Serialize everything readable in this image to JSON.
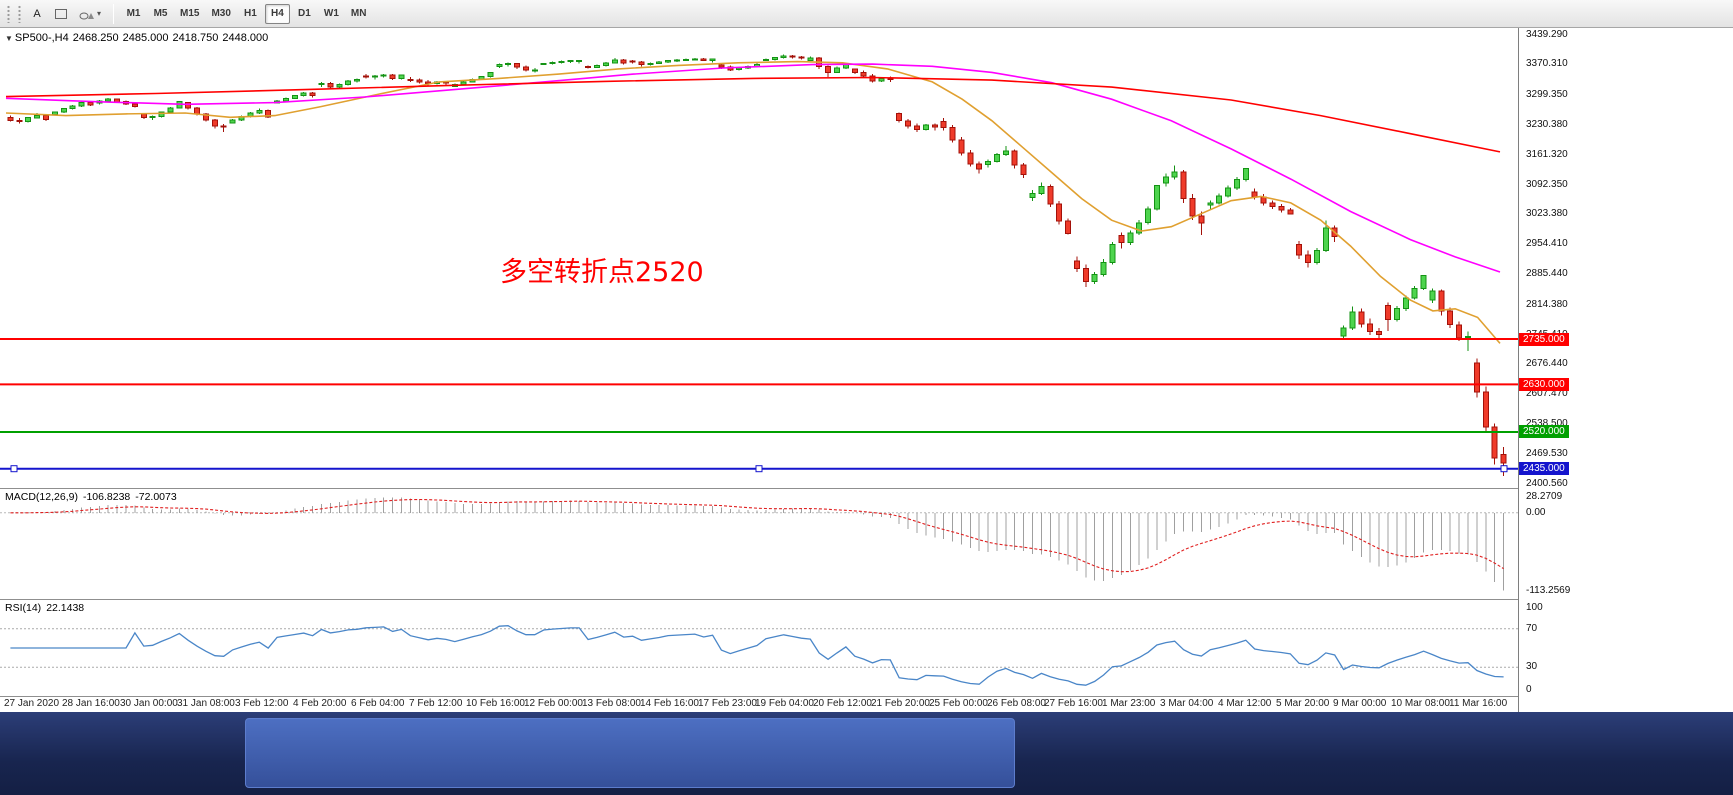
{
  "toolbar": {
    "text_tool": "A",
    "timeframes": [
      "M1",
      "M5",
      "M15",
      "M30",
      "H1",
      "H4",
      "D1",
      "W1",
      "MN"
    ],
    "active_timeframe": "H4"
  },
  "quote": {
    "symbol": "SP500-,H4",
    "open": "2468.250",
    "high": "2485.000",
    "low": "2418.750",
    "close": "2448.000"
  },
  "annotation": {
    "text": "多空转折点2520",
    "color": "#ff0000"
  },
  "price_axis_labels": [
    "3439.290",
    "3370.310",
    "3299.350",
    "3230.380",
    "3161.320",
    "3092.350",
    "3023.380",
    "2954.410",
    "2885.440",
    "2814.380",
    "2745.410",
    "2676.440",
    "2607.470",
    "2538.500",
    "2469.530",
    "2400.560"
  ],
  "time_axis_labels": [
    "27 Jan 2020",
    "28 Jan 16:00",
    "30 Jan 00:00",
    "31 Jan 08:00",
    "3 Feb 12:00",
    "4 Feb 20:00",
    "6 Feb 04:00",
    "7 Feb 12:00",
    "10 Feb 16:00",
    "12 Feb 00:00",
    "13 Feb 08:00",
    "14 Feb 16:00",
    "17 Feb 23:00",
    "19 Feb 04:00",
    "20 Feb 12:00",
    "21 Feb 20:00",
    "25 Feb 00:00",
    "26 Feb 08:00",
    "27 Feb 16:00",
    "1 Mar 23:00",
    "3 Mar 04:00",
    "4 Mar 12:00",
    "5 Mar 20:00",
    "9 Mar 00:00",
    "10 Mar 08:00",
    "11 Mar 16:00"
  ],
  "indicators": {
    "macd": {
      "name": "MACD(12,26,9)",
      "value_main": "-106.8238",
      "value_signal": "-72.0073",
      "axis_top": "28.2709",
      "axis_zero": "0.00",
      "axis_bottom": "-113.2569",
      "histogram_color": "#a0a0a0",
      "signal_color": "#e02020"
    },
    "rsi": {
      "name": "RSI(14)",
      "value": "22.1438",
      "axis_labels": [
        "100",
        "70",
        "30",
        "0"
      ],
      "levels": [
        70,
        30
      ],
      "line_color": "#4a86c8"
    }
  },
  "chart_data": {
    "type": "candlestick",
    "symbol": "SP500-",
    "timeframe": "H4",
    "price_range": [
      2395,
      3450
    ],
    "colors": {
      "up": "#4ed44e",
      "up_border": "#149314",
      "down": "#ef3b2a",
      "down_border": "#a31109"
    },
    "hlines": [
      {
        "price": 2735,
        "label": "2735.000",
        "color": "#ff0000",
        "width": 2
      },
      {
        "price": 2630,
        "label": "2630.000",
        "color": "#ff0000",
        "width": 2
      },
      {
        "price": 2520,
        "label": "2520.000",
        "color": "#00a000",
        "width": 2
      },
      {
        "price": 2435,
        "label": "2435.000",
        "color": "#1414cd",
        "width": 2,
        "selected": true
      }
    ],
    "moving_averages": [
      {
        "name": "MA-fast",
        "color": "#e0a030",
        "points": [
          [
            0,
            3258
          ],
          [
            0.04,
            3252
          ],
          [
            0.08,
            3256
          ],
          [
            0.12,
            3258
          ],
          [
            0.15,
            3248
          ],
          [
            0.18,
            3252
          ],
          [
            0.21,
            3272
          ],
          [
            0.25,
            3302
          ],
          [
            0.29,
            3330
          ],
          [
            0.33,
            3338
          ],
          [
            0.37,
            3348
          ],
          [
            0.41,
            3360
          ],
          [
            0.45,
            3368
          ],
          [
            0.49,
            3374
          ],
          [
            0.53,
            3377
          ],
          [
            0.56,
            3374
          ],
          [
            0.59,
            3360
          ],
          [
            0.62,
            3330
          ],
          [
            0.64,
            3290
          ],
          [
            0.66,
            3240
          ],
          [
            0.68,
            3180
          ],
          [
            0.7,
            3120
          ],
          [
            0.72,
            3060
          ],
          [
            0.74,
            3010
          ],
          [
            0.76,
            2985
          ],
          [
            0.78,
            2995
          ],
          [
            0.8,
            3025
          ],
          [
            0.82,
            3055
          ],
          [
            0.84,
            3065
          ],
          [
            0.86,
            3050
          ],
          [
            0.88,
            3010
          ],
          [
            0.9,
            2950
          ],
          [
            0.92,
            2880
          ],
          [
            0.94,
            2825
          ],
          [
            0.955,
            2800
          ],
          [
            0.97,
            2805
          ],
          [
            0.985,
            2785
          ],
          [
            1,
            2725
          ]
        ]
      },
      {
        "name": "MA-medium",
        "color": "#ff00ff",
        "points": [
          [
            0,
            3292
          ],
          [
            0.06,
            3284
          ],
          [
            0.12,
            3278
          ],
          [
            0.18,
            3282
          ],
          [
            0.24,
            3295
          ],
          [
            0.3,
            3312
          ],
          [
            0.36,
            3330
          ],
          [
            0.42,
            3348
          ],
          [
            0.48,
            3362
          ],
          [
            0.54,
            3370
          ],
          [
            0.58,
            3371
          ],
          [
            0.62,
            3366
          ],
          [
            0.66,
            3352
          ],
          [
            0.7,
            3328
          ],
          [
            0.74,
            3290
          ],
          [
            0.78,
            3240
          ],
          [
            0.82,
            3175
          ],
          [
            0.86,
            3105
          ],
          [
            0.9,
            3030
          ],
          [
            0.94,
            2965
          ],
          [
            0.97,
            2925
          ],
          [
            1,
            2890
          ]
        ]
      },
      {
        "name": "MA-slow",
        "color": "#ff0000",
        "points": [
          [
            0,
            3296
          ],
          [
            0.1,
            3303
          ],
          [
            0.2,
            3312
          ],
          [
            0.3,
            3322
          ],
          [
            0.4,
            3331
          ],
          [
            0.5,
            3338
          ],
          [
            0.58,
            3340
          ],
          [
            0.66,
            3334
          ],
          [
            0.74,
            3318
          ],
          [
            0.82,
            3288
          ],
          [
            0.88,
            3252
          ],
          [
            0.94,
            3210
          ],
          [
            1,
            3168
          ]
        ]
      }
    ],
    "ohlc": [
      [
        3247,
        3252,
        3238,
        3241
      ],
      [
        3241,
        3246,
        3234,
        3238
      ],
      [
        3238,
        3249,
        3236,
        3247
      ],
      [
        3247,
        3258,
        3245,
        3252
      ],
      [
        3252,
        3255,
        3240,
        3243
      ],
      [
        3255,
        3262,
        3253,
        3260
      ],
      [
        3260,
        3270,
        3258,
        3268
      ],
      [
        3268,
        3277,
        3266,
        3274
      ],
      [
        3274,
        3285,
        3272,
        3282
      ],
      [
        3282,
        3284,
        3274,
        3276
      ],
      [
        3281,
        3288,
        3278,
        3286
      ],
      [
        3286,
        3293,
        3284,
        3290
      ],
      [
        3290,
        3292,
        3282,
        3284
      ],
      [
        3284,
        3287,
        3276,
        3279
      ],
      [
        3279,
        3281,
        3271,
        3273
      ],
      [
        3256,
        3258,
        3244,
        3248
      ],
      [
        3248,
        3252,
        3242,
        3250
      ],
      [
        3250,
        3262,
        3248,
        3260
      ],
      [
        3260,
        3272,
        3258,
        3270
      ],
      [
        3270,
        3285,
        3268,
        3284
      ],
      [
        3282,
        3282,
        3266,
        3270
      ],
      [
        3270,
        3272,
        3252,
        3256
      ],
      [
        3256,
        3258,
        3238,
        3242
      ],
      [
        3242,
        3244,
        3222,
        3228
      ],
      [
        3228,
        3232,
        3214,
        3226
      ],
      [
        3235,
        3244,
        3235,
        3242
      ],
      [
        3242,
        3252,
        3240,
        3250
      ],
      [
        3250,
        3260,
        3248,
        3258
      ],
      [
        3258,
        3268,
        3256,
        3264
      ],
      [
        3264,
        3266,
        3246,
        3249
      ],
      [
        3281,
        3288,
        3280,
        3286
      ],
      [
        3286,
        3294,
        3284,
        3292
      ],
      [
        3292,
        3300,
        3290,
        3298
      ],
      [
        3298,
        3307,
        3296,
        3304
      ],
      [
        3304,
        3306,
        3294,
        3298
      ],
      [
        3324,
        3330,
        3318,
        3326
      ],
      [
        3326,
        3330,
        3313,
        3318
      ],
      [
        3318,
        3326,
        3316,
        3324
      ],
      [
        3324,
        3334,
        3322,
        3332
      ],
      [
        3332,
        3338,
        3328,
        3335
      ],
      [
        3344,
        3348,
        3338,
        3342
      ],
      [
        3342,
        3346,
        3336,
        3344
      ],
      [
        3344,
        3348,
        3340,
        3346
      ],
      [
        3346,
        3348,
        3334,
        3338
      ],
      [
        3338,
        3346,
        3336,
        3346
      ],
      [
        3335,
        3341,
        3330,
        3334
      ],
      [
        3334,
        3338,
        3326,
        3330
      ],
      [
        3330,
        3334,
        3322,
        3326
      ],
      [
        3326,
        3332,
        3324,
        3330
      ],
      [
        3330,
        3332,
        3322,
        3328
      ],
      [
        3319,
        3326,
        3318,
        3324
      ],
      [
        3324,
        3332,
        3322,
        3330
      ],
      [
        3330,
        3338,
        3328,
        3336
      ],
      [
        3336,
        3344,
        3334,
        3342
      ],
      [
        3342,
        3352,
        3340,
        3352
      ],
      [
        3366,
        3372,
        3362,
        3370
      ],
      [
        3370,
        3375,
        3366,
        3372
      ],
      [
        3372,
        3374,
        3360,
        3364
      ],
      [
        3364,
        3368,
        3354,
        3358
      ],
      [
        3358,
        3362,
        3352,
        3358
      ],
      [
        3370,
        3374,
        3369,
        3372
      ],
      [
        3372,
        3377,
        3370,
        3375
      ],
      [
        3375,
        3379,
        3372,
        3377
      ],
      [
        3377,
        3381,
        3374,
        3379
      ],
      [
        3379,
        3381,
        3373,
        3379
      ],
      [
        3365,
        3368,
        3361,
        3363
      ],
      [
        3363,
        3370,
        3362,
        3368
      ],
      [
        3368,
        3376,
        3366,
        3374
      ],
      [
        3374,
        3385,
        3372,
        3381
      ],
      [
        3381,
        3383,
        3370,
        3374
      ],
      [
        3378,
        3381,
        3372,
        3376
      ],
      [
        3376,
        3378,
        3366,
        3370
      ],
      [
        3370,
        3375,
        3368,
        3373
      ],
      [
        3373,
        3378,
        3371,
        3376
      ],
      [
        3376,
        3381,
        3374,
        3380
      ],
      [
        3380,
        3383,
        3376,
        3381
      ],
      [
        3381,
        3384,
        3378,
        3382
      ],
      [
        3382,
        3385,
        3379,
        3383
      ],
      [
        3383,
        3385,
        3378,
        3380
      ],
      [
        3380,
        3384,
        3375,
        3383
      ],
      [
        3369,
        3372,
        3360,
        3364
      ],
      [
        3364,
        3368,
        3355,
        3358
      ],
      [
        3358,
        3364,
        3356,
        3362
      ],
      [
        3362,
        3368,
        3360,
        3366
      ],
      [
        3366,
        3375,
        3364,
        3370
      ],
      [
        3380,
        3384,
        3378,
        3382
      ],
      [
        3382,
        3388,
        3380,
        3386
      ],
      [
        3386,
        3393,
        3384,
        3390
      ],
      [
        3390,
        3392,
        3384,
        3388
      ],
      [
        3388,
        3390,
        3382,
        3386
      ],
      [
        3380,
        3389,
        3378,
        3385
      ],
      [
        3385,
        3387,
        3360,
        3365
      ],
      [
        3365,
        3368,
        3341,
        3352
      ],
      [
        3352,
        3366,
        3350,
        3362
      ],
      [
        3362,
        3375,
        3360,
        3373
      ],
      [
        3360,
        3360,
        3348,
        3352
      ],
      [
        3352,
        3356,
        3340,
        3344
      ],
      [
        3344,
        3348,
        3328,
        3332
      ],
      [
        3332,
        3340,
        3330,
        3338
      ],
      [
        3338,
        3342,
        3330,
        3337
      ],
      [
        3257,
        3259,
        3236,
        3240
      ],
      [
        3240,
        3244,
        3222,
        3228
      ],
      [
        3228,
        3234,
        3214,
        3220
      ],
      [
        3220,
        3232,
        3218,
        3230
      ],
      [
        3230,
        3234,
        3218,
        3226
      ],
      [
        3238,
        3246,
        3218,
        3224
      ],
      [
        3224,
        3230,
        3190,
        3196
      ],
      [
        3196,
        3202,
        3160,
        3166
      ],
      [
        3166,
        3172,
        3134,
        3140
      ],
      [
        3140,
        3146,
        3118,
        3128
      ],
      [
        3139,
        3150,
        3132,
        3146
      ],
      [
        3146,
        3166,
        3144,
        3162
      ],
      [
        3162,
        3182,
        3158,
        3170
      ],
      [
        3170,
        3174,
        3130,
        3138
      ],
      [
        3138,
        3142,
        3108,
        3116
      ],
      [
        3062,
        3080,
        3054,
        3072
      ],
      [
        3072,
        3097,
        3068,
        3088
      ],
      [
        3088,
        3092,
        3040,
        3048
      ],
      [
        3048,
        3054,
        3000,
        3008
      ],
      [
        3008,
        3014,
        2977,
        2979
      ],
      [
        2916,
        2926,
        2890,
        2898
      ],
      [
        2898,
        2908,
        2855,
        2868
      ],
      [
        2868,
        2890,
        2862,
        2884
      ],
      [
        2884,
        2920,
        2880,
        2912
      ],
      [
        2912,
        2959,
        2908,
        2954
      ],
      [
        2974,
        2982,
        2945,
        2958
      ],
      [
        2958,
        2986,
        2952,
        2980
      ],
      [
        2980,
        3010,
        2976,
        3004
      ],
      [
        3004,
        3042,
        3000,
        3036
      ],
      [
        3036,
        3090,
        3032,
        3090
      ],
      [
        3096,
        3118,
        3088,
        3110
      ],
      [
        3110,
        3136,
        3104,
        3122
      ],
      [
        3122,
        3126,
        3050,
        3060
      ],
      [
        3060,
        3070,
        3010,
        3020
      ],
      [
        3020,
        3030,
        2976,
        3003
      ],
      [
        3045,
        3056,
        3034,
        3050
      ],
      [
        3050,
        3072,
        3046,
        3066
      ],
      [
        3066,
        3090,
        3062,
        3084
      ],
      [
        3084,
        3110,
        3080,
        3104
      ],
      [
        3104,
        3130,
        3100,
        3130
      ],
      [
        3075,
        3083,
        3058,
        3064
      ],
      [
        3064,
        3070,
        3044,
        3050
      ],
      [
        3050,
        3056,
        3036,
        3042
      ],
      [
        3042,
        3048,
        3028,
        3034
      ],
      [
        3034,
        3038,
        3024,
        3024
      ],
      [
        2954,
        2962,
        2920,
        2930
      ],
      [
        2930,
        2940,
        2901,
        2912
      ],
      [
        2912,
        2946,
        2908,
        2940
      ],
      [
        2940,
        3009,
        2936,
        2992
      ],
      [
        2992,
        2998,
        2960,
        2972
      ],
      [
        2742,
        2766,
        2734,
        2760
      ],
      [
        2760,
        2810,
        2756,
        2798
      ],
      [
        2798,
        2806,
        2762,
        2770
      ],
      [
        2770,
        2782,
        2744,
        2752
      ],
      [
        2752,
        2760,
        2736,
        2746
      ],
      [
        2813,
        2820,
        2754,
        2780
      ],
      [
        2780,
        2812,
        2776,
        2806
      ],
      [
        2806,
        2836,
        2800,
        2830
      ],
      [
        2830,
        2858,
        2826,
        2852
      ],
      [
        2852,
        2882,
        2848,
        2882
      ],
      [
        2825,
        2852,
        2818,
        2846
      ],
      [
        2846,
        2850,
        2790,
        2800
      ],
      [
        2800,
        2808,
        2760,
        2768
      ],
      [
        2768,
        2776,
        2730,
        2738
      ],
      [
        2738,
        2752,
        2707,
        2741
      ],
      [
        2680,
        2690,
        2600,
        2612
      ],
      [
        2612,
        2625,
        2520,
        2532
      ],
      [
        2532,
        2540,
        2445,
        2460
      ],
      [
        2468,
        2485,
        2418,
        2448
      ]
    ]
  },
  "taskbar": {
    "bg": "#1e2c5a",
    "active_button": "#3d5fae"
  }
}
